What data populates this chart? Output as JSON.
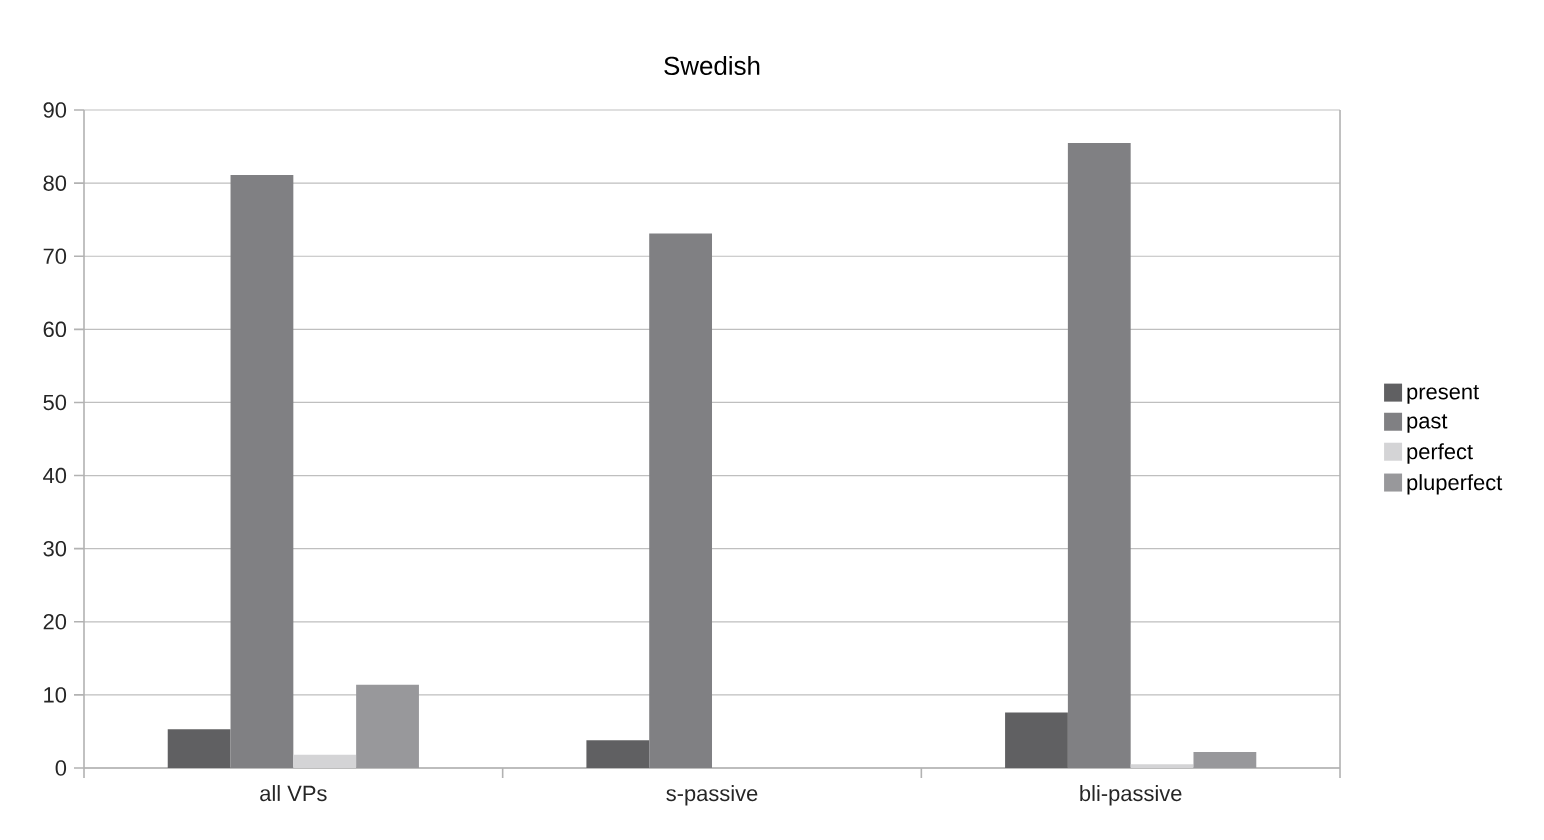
{
  "chart_data": {
    "type": "bar",
    "title": "Swedish",
    "categories": [
      "all VPs",
      "s-passive",
      "bli-passive"
    ],
    "series": [
      {
        "name": "present",
        "color": "#606062",
        "values": [
          5.3,
          3.8,
          7.6
        ]
      },
      {
        "name": "past",
        "color": "#808083",
        "values": [
          81.1,
          73.1,
          85.5
        ]
      },
      {
        "name": "perfect",
        "color": "#d4d4d6",
        "values": [
          1.8,
          null,
          0.5
        ]
      },
      {
        "name": "pluperfect",
        "color": "#98989b",
        "values": [
          11.4,
          null,
          2.2
        ]
      }
    ],
    "ylim": [
      0,
      90
    ],
    "yticks": [
      0,
      10,
      20,
      30,
      40,
      50,
      60,
      70,
      80,
      90
    ],
    "grid": "y",
    "legend": "right"
  }
}
